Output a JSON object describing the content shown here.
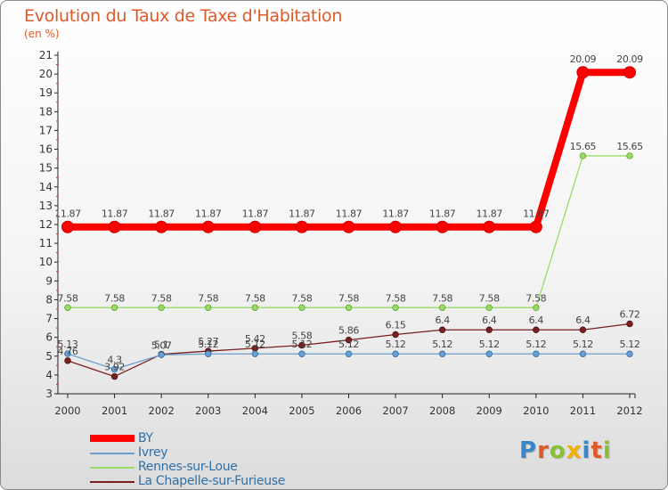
{
  "title": "Evolution du Taux de Taxe d'Habitation",
  "subtitle": "(en %)",
  "chart_data": {
    "type": "line",
    "title": "Evolution du Taux de Taxe d'Habitation",
    "ylabel": "(en %)",
    "xlabel": "",
    "ylim": [
      3,
      21
    ],
    "y_ticks": [
      3,
      4,
      5,
      6,
      7,
      8,
      9,
      10,
      11,
      12,
      13,
      14,
      15,
      16,
      17,
      18,
      19,
      20,
      21
    ],
    "categories": [
      "2000",
      "2001",
      "2002",
      "2003",
      "2004",
      "2005",
      "2006",
      "2007",
      "2008",
      "2009",
      "2010",
      "2011",
      "2012"
    ],
    "grid": false,
    "series": [
      {
        "name": "BY",
        "color": "#ff0000",
        "values": [
          11.87,
          11.87,
          11.87,
          11.87,
          11.87,
          11.87,
          11.87,
          11.87,
          11.87,
          11.87,
          11.87,
          20.09,
          20.09
        ],
        "labels": [
          "11.87",
          "11.87",
          "11.87",
          "11.87",
          "11.87",
          "11.87",
          "11.87",
          "11.87",
          "11.87",
          "11.87",
          "11.87",
          "20.09",
          "20.09"
        ]
      },
      {
        "name": "Ivrey",
        "color": "#6a9fd0",
        "values": [
          5.13,
          4.3,
          5.07,
          5.12,
          5.12,
          5.12,
          5.12,
          5.12,
          5.12,
          5.12,
          5.12,
          5.12,
          5.12
        ],
        "labels": [
          "5.13",
          "4.3",
          "5.07",
          "5.12",
          "5.12",
          "5.12",
          "5.12",
          "5.12",
          "5.12",
          "5.12",
          "5.12",
          "5.12",
          "5.12"
        ]
      },
      {
        "name": "Rennes-sur-Loue",
        "color": "#99dd66",
        "values": [
          7.58,
          7.58,
          7.58,
          7.58,
          7.58,
          7.58,
          7.58,
          7.58,
          7.58,
          7.58,
          7.58,
          15.65,
          15.65
        ],
        "labels": [
          "7.58",
          "7.58",
          "7.58",
          "7.58",
          "7.58",
          "7.58",
          "7.58",
          "7.58",
          "7.58",
          "7.58",
          "7.58",
          "15.65",
          "15.65"
        ]
      },
      {
        "name": "La Chapelle-sur-Furieuse",
        "color": "#7a1f1f",
        "values": [
          4.76,
          3.92,
          5.1,
          5.27,
          5.42,
          5.58,
          5.86,
          6.15,
          6.4,
          6.4,
          6.4,
          6.4,
          6.72
        ],
        "labels": [
          "4.76",
          "3.92",
          "5.1",
          "5.27",
          "5.42",
          "5.58",
          "5.86",
          "6.15",
          "6.4",
          "6.4",
          "6.4",
          "6.4",
          "6.72"
        ]
      }
    ]
  },
  "brand": {
    "letters": [
      "P",
      "r",
      "o",
      "x",
      "i",
      "t",
      "i"
    ],
    "colors": [
      "#3a86c8",
      "#e05a28",
      "#8bbf3a",
      "#f0b000",
      "#3a86c8",
      "#e05a28",
      "#8bbf3a"
    ]
  }
}
